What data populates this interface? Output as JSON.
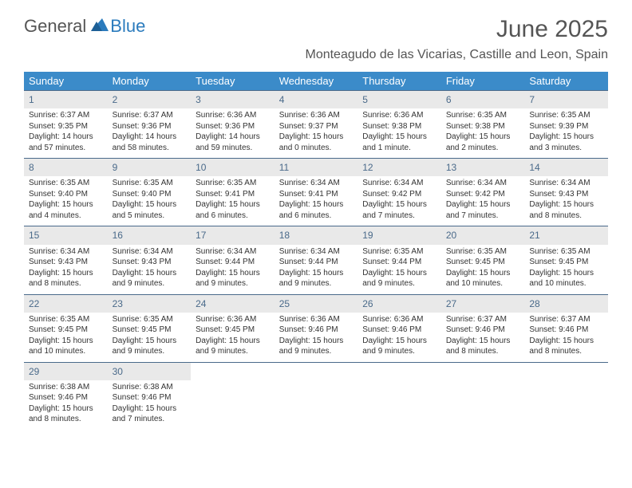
{
  "logo": {
    "text1": "General",
    "text2": "Blue"
  },
  "title": "June 2025",
  "location": "Monteagudo de las Vicarias, Castille and Leon, Spain",
  "colors": {
    "header_bg": "#3b8bc9",
    "header_text": "#ffffff",
    "daynum_bg": "#e9e9e9",
    "daynum_text": "#4a6a8a",
    "border": "#4a6a8a",
    "logo_blue": "#2b7bbd",
    "body_text": "#333333"
  },
  "day_headers": [
    "Sunday",
    "Monday",
    "Tuesday",
    "Wednesday",
    "Thursday",
    "Friday",
    "Saturday"
  ],
  "weeks": [
    [
      {
        "n": "1",
        "sr": "Sunrise: 6:37 AM",
        "ss": "Sunset: 9:35 PM",
        "d1": "Daylight: 14 hours",
        "d2": "and 57 minutes."
      },
      {
        "n": "2",
        "sr": "Sunrise: 6:37 AM",
        "ss": "Sunset: 9:36 PM",
        "d1": "Daylight: 14 hours",
        "d2": "and 58 minutes."
      },
      {
        "n": "3",
        "sr": "Sunrise: 6:36 AM",
        "ss": "Sunset: 9:36 PM",
        "d1": "Daylight: 14 hours",
        "d2": "and 59 minutes."
      },
      {
        "n": "4",
        "sr": "Sunrise: 6:36 AM",
        "ss": "Sunset: 9:37 PM",
        "d1": "Daylight: 15 hours",
        "d2": "and 0 minutes."
      },
      {
        "n": "5",
        "sr": "Sunrise: 6:36 AM",
        "ss": "Sunset: 9:38 PM",
        "d1": "Daylight: 15 hours",
        "d2": "and 1 minute."
      },
      {
        "n": "6",
        "sr": "Sunrise: 6:35 AM",
        "ss": "Sunset: 9:38 PM",
        "d1": "Daylight: 15 hours",
        "d2": "and 2 minutes."
      },
      {
        "n": "7",
        "sr": "Sunrise: 6:35 AM",
        "ss": "Sunset: 9:39 PM",
        "d1": "Daylight: 15 hours",
        "d2": "and 3 minutes."
      }
    ],
    [
      {
        "n": "8",
        "sr": "Sunrise: 6:35 AM",
        "ss": "Sunset: 9:40 PM",
        "d1": "Daylight: 15 hours",
        "d2": "and 4 minutes."
      },
      {
        "n": "9",
        "sr": "Sunrise: 6:35 AM",
        "ss": "Sunset: 9:40 PM",
        "d1": "Daylight: 15 hours",
        "d2": "and 5 minutes."
      },
      {
        "n": "10",
        "sr": "Sunrise: 6:35 AM",
        "ss": "Sunset: 9:41 PM",
        "d1": "Daylight: 15 hours",
        "d2": "and 6 minutes."
      },
      {
        "n": "11",
        "sr": "Sunrise: 6:34 AM",
        "ss": "Sunset: 9:41 PM",
        "d1": "Daylight: 15 hours",
        "d2": "and 6 minutes."
      },
      {
        "n": "12",
        "sr": "Sunrise: 6:34 AM",
        "ss": "Sunset: 9:42 PM",
        "d1": "Daylight: 15 hours",
        "d2": "and 7 minutes."
      },
      {
        "n": "13",
        "sr": "Sunrise: 6:34 AM",
        "ss": "Sunset: 9:42 PM",
        "d1": "Daylight: 15 hours",
        "d2": "and 7 minutes."
      },
      {
        "n": "14",
        "sr": "Sunrise: 6:34 AM",
        "ss": "Sunset: 9:43 PM",
        "d1": "Daylight: 15 hours",
        "d2": "and 8 minutes."
      }
    ],
    [
      {
        "n": "15",
        "sr": "Sunrise: 6:34 AM",
        "ss": "Sunset: 9:43 PM",
        "d1": "Daylight: 15 hours",
        "d2": "and 8 minutes."
      },
      {
        "n": "16",
        "sr": "Sunrise: 6:34 AM",
        "ss": "Sunset: 9:43 PM",
        "d1": "Daylight: 15 hours",
        "d2": "and 9 minutes."
      },
      {
        "n": "17",
        "sr": "Sunrise: 6:34 AM",
        "ss": "Sunset: 9:44 PM",
        "d1": "Daylight: 15 hours",
        "d2": "and 9 minutes."
      },
      {
        "n": "18",
        "sr": "Sunrise: 6:34 AM",
        "ss": "Sunset: 9:44 PM",
        "d1": "Daylight: 15 hours",
        "d2": "and 9 minutes."
      },
      {
        "n": "19",
        "sr": "Sunrise: 6:35 AM",
        "ss": "Sunset: 9:44 PM",
        "d1": "Daylight: 15 hours",
        "d2": "and 9 minutes."
      },
      {
        "n": "20",
        "sr": "Sunrise: 6:35 AM",
        "ss": "Sunset: 9:45 PM",
        "d1": "Daylight: 15 hours",
        "d2": "and 10 minutes."
      },
      {
        "n": "21",
        "sr": "Sunrise: 6:35 AM",
        "ss": "Sunset: 9:45 PM",
        "d1": "Daylight: 15 hours",
        "d2": "and 10 minutes."
      }
    ],
    [
      {
        "n": "22",
        "sr": "Sunrise: 6:35 AM",
        "ss": "Sunset: 9:45 PM",
        "d1": "Daylight: 15 hours",
        "d2": "and 10 minutes."
      },
      {
        "n": "23",
        "sr": "Sunrise: 6:35 AM",
        "ss": "Sunset: 9:45 PM",
        "d1": "Daylight: 15 hours",
        "d2": "and 9 minutes."
      },
      {
        "n": "24",
        "sr": "Sunrise: 6:36 AM",
        "ss": "Sunset: 9:45 PM",
        "d1": "Daylight: 15 hours",
        "d2": "and 9 minutes."
      },
      {
        "n": "25",
        "sr": "Sunrise: 6:36 AM",
        "ss": "Sunset: 9:46 PM",
        "d1": "Daylight: 15 hours",
        "d2": "and 9 minutes."
      },
      {
        "n": "26",
        "sr": "Sunrise: 6:36 AM",
        "ss": "Sunset: 9:46 PM",
        "d1": "Daylight: 15 hours",
        "d2": "and 9 minutes."
      },
      {
        "n": "27",
        "sr": "Sunrise: 6:37 AM",
        "ss": "Sunset: 9:46 PM",
        "d1": "Daylight: 15 hours",
        "d2": "and 8 minutes."
      },
      {
        "n": "28",
        "sr": "Sunrise: 6:37 AM",
        "ss": "Sunset: 9:46 PM",
        "d1": "Daylight: 15 hours",
        "d2": "and 8 minutes."
      }
    ],
    [
      {
        "n": "29",
        "sr": "Sunrise: 6:38 AM",
        "ss": "Sunset: 9:46 PM",
        "d1": "Daylight: 15 hours",
        "d2": "and 8 minutes."
      },
      {
        "n": "30",
        "sr": "Sunrise: 6:38 AM",
        "ss": "Sunset: 9:46 PM",
        "d1": "Daylight: 15 hours",
        "d2": "and 7 minutes."
      },
      null,
      null,
      null,
      null,
      null
    ]
  ]
}
